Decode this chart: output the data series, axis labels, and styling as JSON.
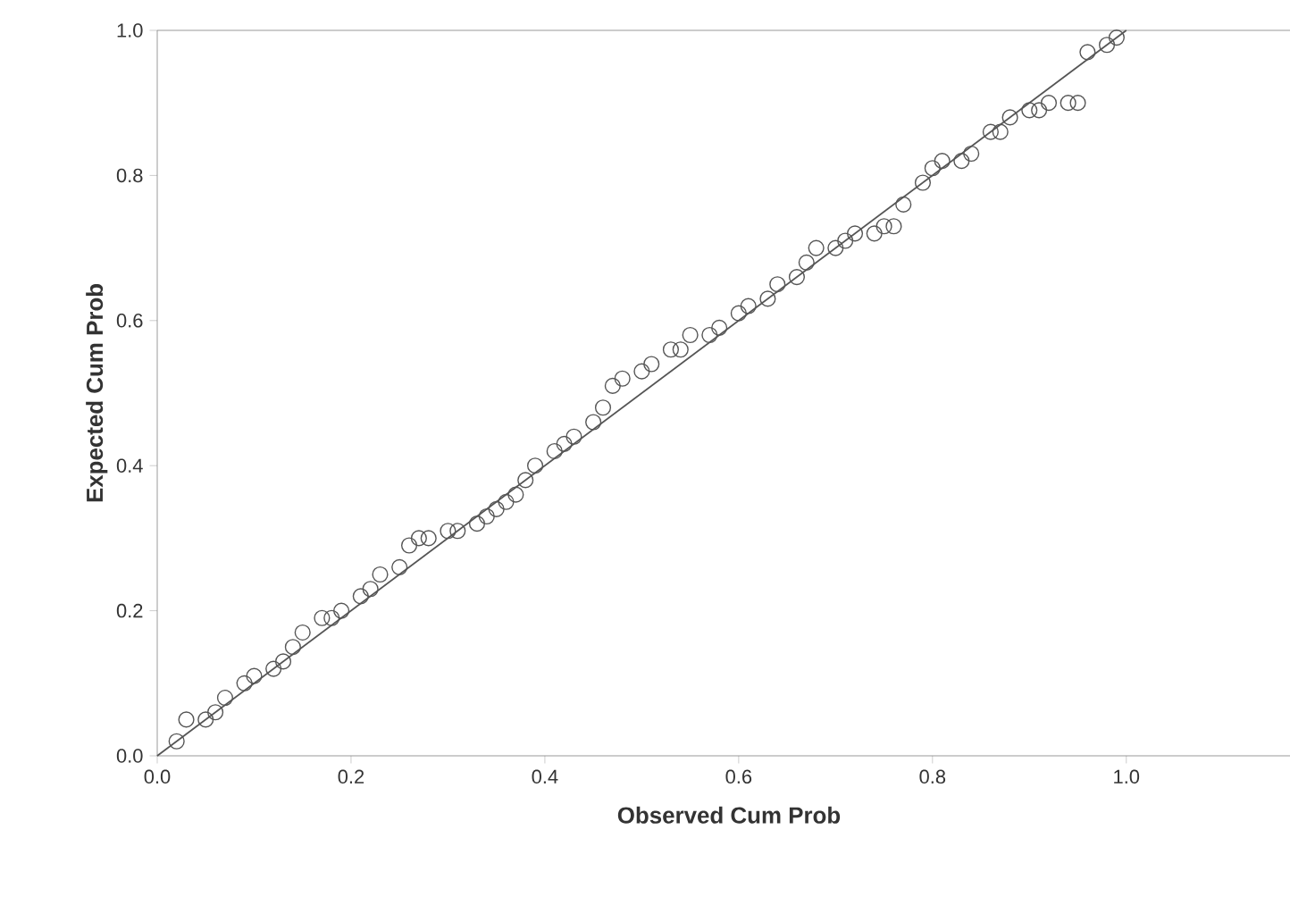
{
  "chart_data": {
    "type": "scatter",
    "xlabel": "Observed Cum Prob",
    "ylabel": "Expected Cum Prob",
    "xlim": [
      0,
      1.18
    ],
    "ylim": [
      0,
      1
    ],
    "xticks": [
      {
        "value": 0,
        "label": "0.0"
      },
      0.2,
      0.4,
      0.6,
      0.8,
      {
        "value": 1,
        "label": "1.0"
      }
    ],
    "yticks": [
      {
        "value": 0,
        "label": "0.0"
      },
      0.2,
      0.4,
      0.6,
      0.8,
      {
        "value": 1,
        "label": "1.0"
      }
    ],
    "grid": false,
    "series": [
      {
        "marker": "circle",
        "color": "#555555",
        "x": [
          0.02,
          0.03,
          0.05,
          0.06,
          0.07,
          0.09,
          0.1,
          0.12,
          0.13,
          0.14,
          0.15,
          0.17,
          0.18,
          0.19,
          0.21,
          0.22,
          0.23,
          0.25,
          0.26,
          0.27,
          0.28,
          0.3,
          0.31,
          0.33,
          0.34,
          0.35,
          0.36,
          0.37,
          0.38,
          0.39,
          0.41,
          0.42,
          0.43,
          0.45,
          0.46,
          0.47,
          0.48,
          0.5,
          0.51,
          0.53,
          0.54,
          0.55,
          0.57,
          0.58,
          0.6,
          0.61,
          0.63,
          0.64,
          0.66,
          0.67,
          0.68,
          0.7,
          0.71,
          0.72,
          0.74,
          0.75,
          0.76,
          0.77,
          0.79,
          0.8,
          0.81,
          0.83,
          0.84,
          0.86,
          0.87,
          0.88,
          0.9,
          0.91,
          0.92,
          0.94,
          0.95,
          0.96,
          0.98,
          0.99
        ],
        "values": [
          0.02,
          0.05,
          0.05,
          0.06,
          0.08,
          0.1,
          0.11,
          0.12,
          0.13,
          0.15,
          0.17,
          0.19,
          0.19,
          0.2,
          0.22,
          0.23,
          0.25,
          0.26,
          0.29,
          0.3,
          0.3,
          0.31,
          0.31,
          0.32,
          0.33,
          0.34,
          0.35,
          0.36,
          0.38,
          0.4,
          0.42,
          0.43,
          0.44,
          0.46,
          0.48,
          0.51,
          0.52,
          0.53,
          0.54,
          0.56,
          0.56,
          0.58,
          0.58,
          0.59,
          0.61,
          0.62,
          0.63,
          0.65,
          0.66,
          0.68,
          0.7,
          0.7,
          0.71,
          0.72,
          0.72,
          0.73,
          0.73,
          0.76,
          0.79,
          0.81,
          0.82,
          0.82,
          0.83,
          0.86,
          0.86,
          0.88,
          0.89,
          0.89,
          0.9,
          0.9,
          0.9,
          0.97,
          0.98,
          0.99
        ]
      },
      {
        "type": "line",
        "marker": "none",
        "line_style": "solid",
        "color": "#555555",
        "x": [
          0,
          1
        ],
        "values": [
          0,
          1
        ]
      }
    ]
  }
}
